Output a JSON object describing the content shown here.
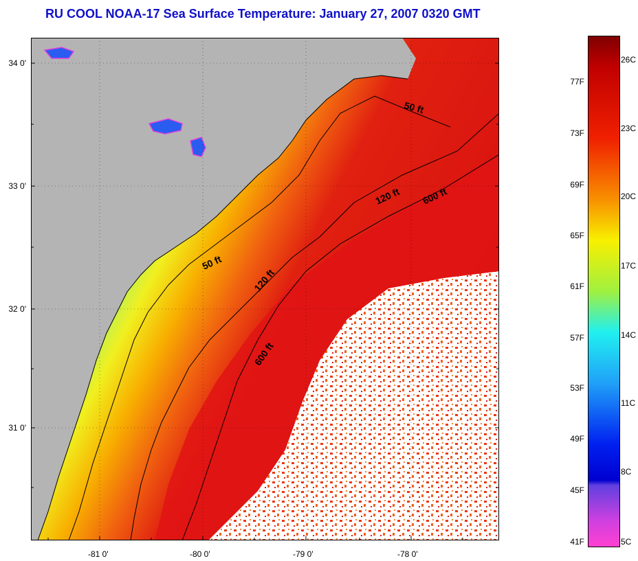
{
  "title": "RU COOL  NOAA-17  Sea Surface Temperature:  January 27, 2007 0320 GMT",
  "map": {
    "latitude_labels": [
      "34 0'",
      "33 0'",
      "32 0'",
      "31 0'"
    ],
    "longitude_labels": [
      "-81 0'",
      "-80 0'",
      "-79 0'",
      "-78 0'"
    ],
    "depth_contours": [
      {
        "label": "50 ft"
      },
      {
        "label": "50 ft"
      },
      {
        "label": "120 ft"
      },
      {
        "label": "120 ft"
      },
      {
        "label": "600 ft"
      },
      {
        "label": "600 ft"
      }
    ],
    "colors": {
      "land": "#b4b4b4",
      "cloud": "#ffffff",
      "warm": "#e01414",
      "cold": "#1e5af0"
    }
  },
  "colorbar": {
    "fahrenheit_labels": [
      "77F",
      "73F",
      "69F",
      "65F",
      "61F",
      "57F",
      "53F",
      "49F",
      "45F",
      "41F"
    ],
    "celsius_labels": [
      "26C",
      "23C",
      "20C",
      "17C",
      "14C",
      "11C",
      "8C",
      "5C"
    ]
  }
}
